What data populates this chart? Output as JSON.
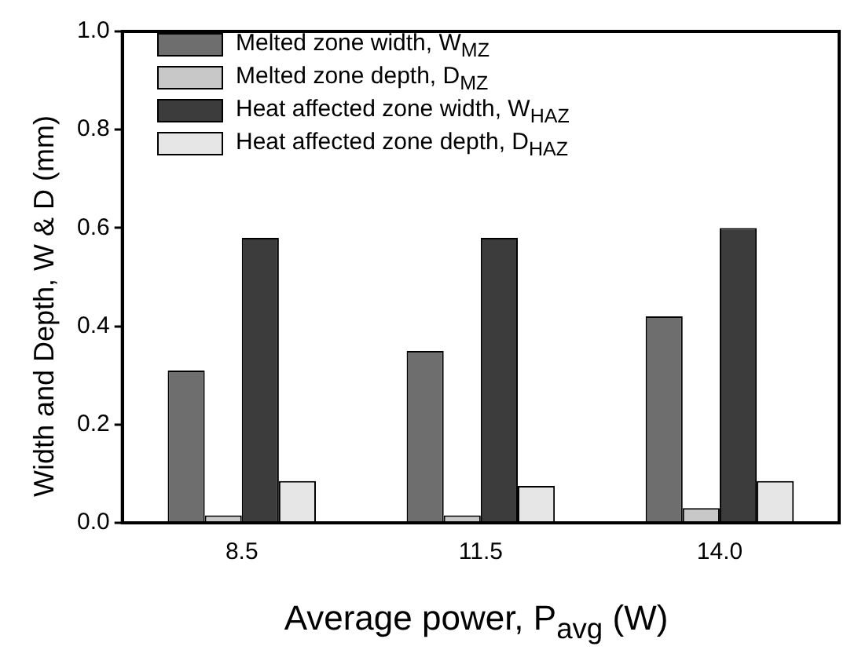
{
  "chart_data": {
    "type": "bar",
    "xlabel": "Average power, P$_{avg}$ (W)",
    "ylabel": "Width and Depth, W & D (mm)",
    "categories": [
      "8.5",
      "11.5",
      "14.0"
    ],
    "series": [
      {
        "name": "Melted zone width, W$_{MZ}$",
        "color": "#6e6e6e",
        "values": [
          0.31,
          0.35,
          0.42
        ]
      },
      {
        "name": "Melted zone depth, D$_{MZ}$",
        "color": "#c8c8c8",
        "values": [
          0.015,
          0.015,
          0.03
        ]
      },
      {
        "name": "Heat affected zone width, W$_{HAZ}$",
        "color": "#3c3c3c",
        "values": [
          0.58,
          0.58,
          0.6
        ]
      },
      {
        "name": "Heat affected zone depth, D$_{HAZ}$",
        "color": "#e6e6e6",
        "values": [
          0.085,
          0.075,
          0.085
        ]
      }
    ],
    "ylim": [
      0,
      1.0
    ],
    "yticks": [
      {
        "value": 0,
        "label": "0.0"
      },
      {
        "value": 0.2,
        "label": "0.2"
      },
      {
        "value": 0.4,
        "label": "0.4"
      },
      {
        "value": 0.6,
        "label": "0.6"
      },
      {
        "value": 0.8,
        "label": "0.8"
      },
      {
        "value": 1.0,
        "label": "1.0"
      }
    ],
    "grid": false,
    "legend": "top left"
  }
}
